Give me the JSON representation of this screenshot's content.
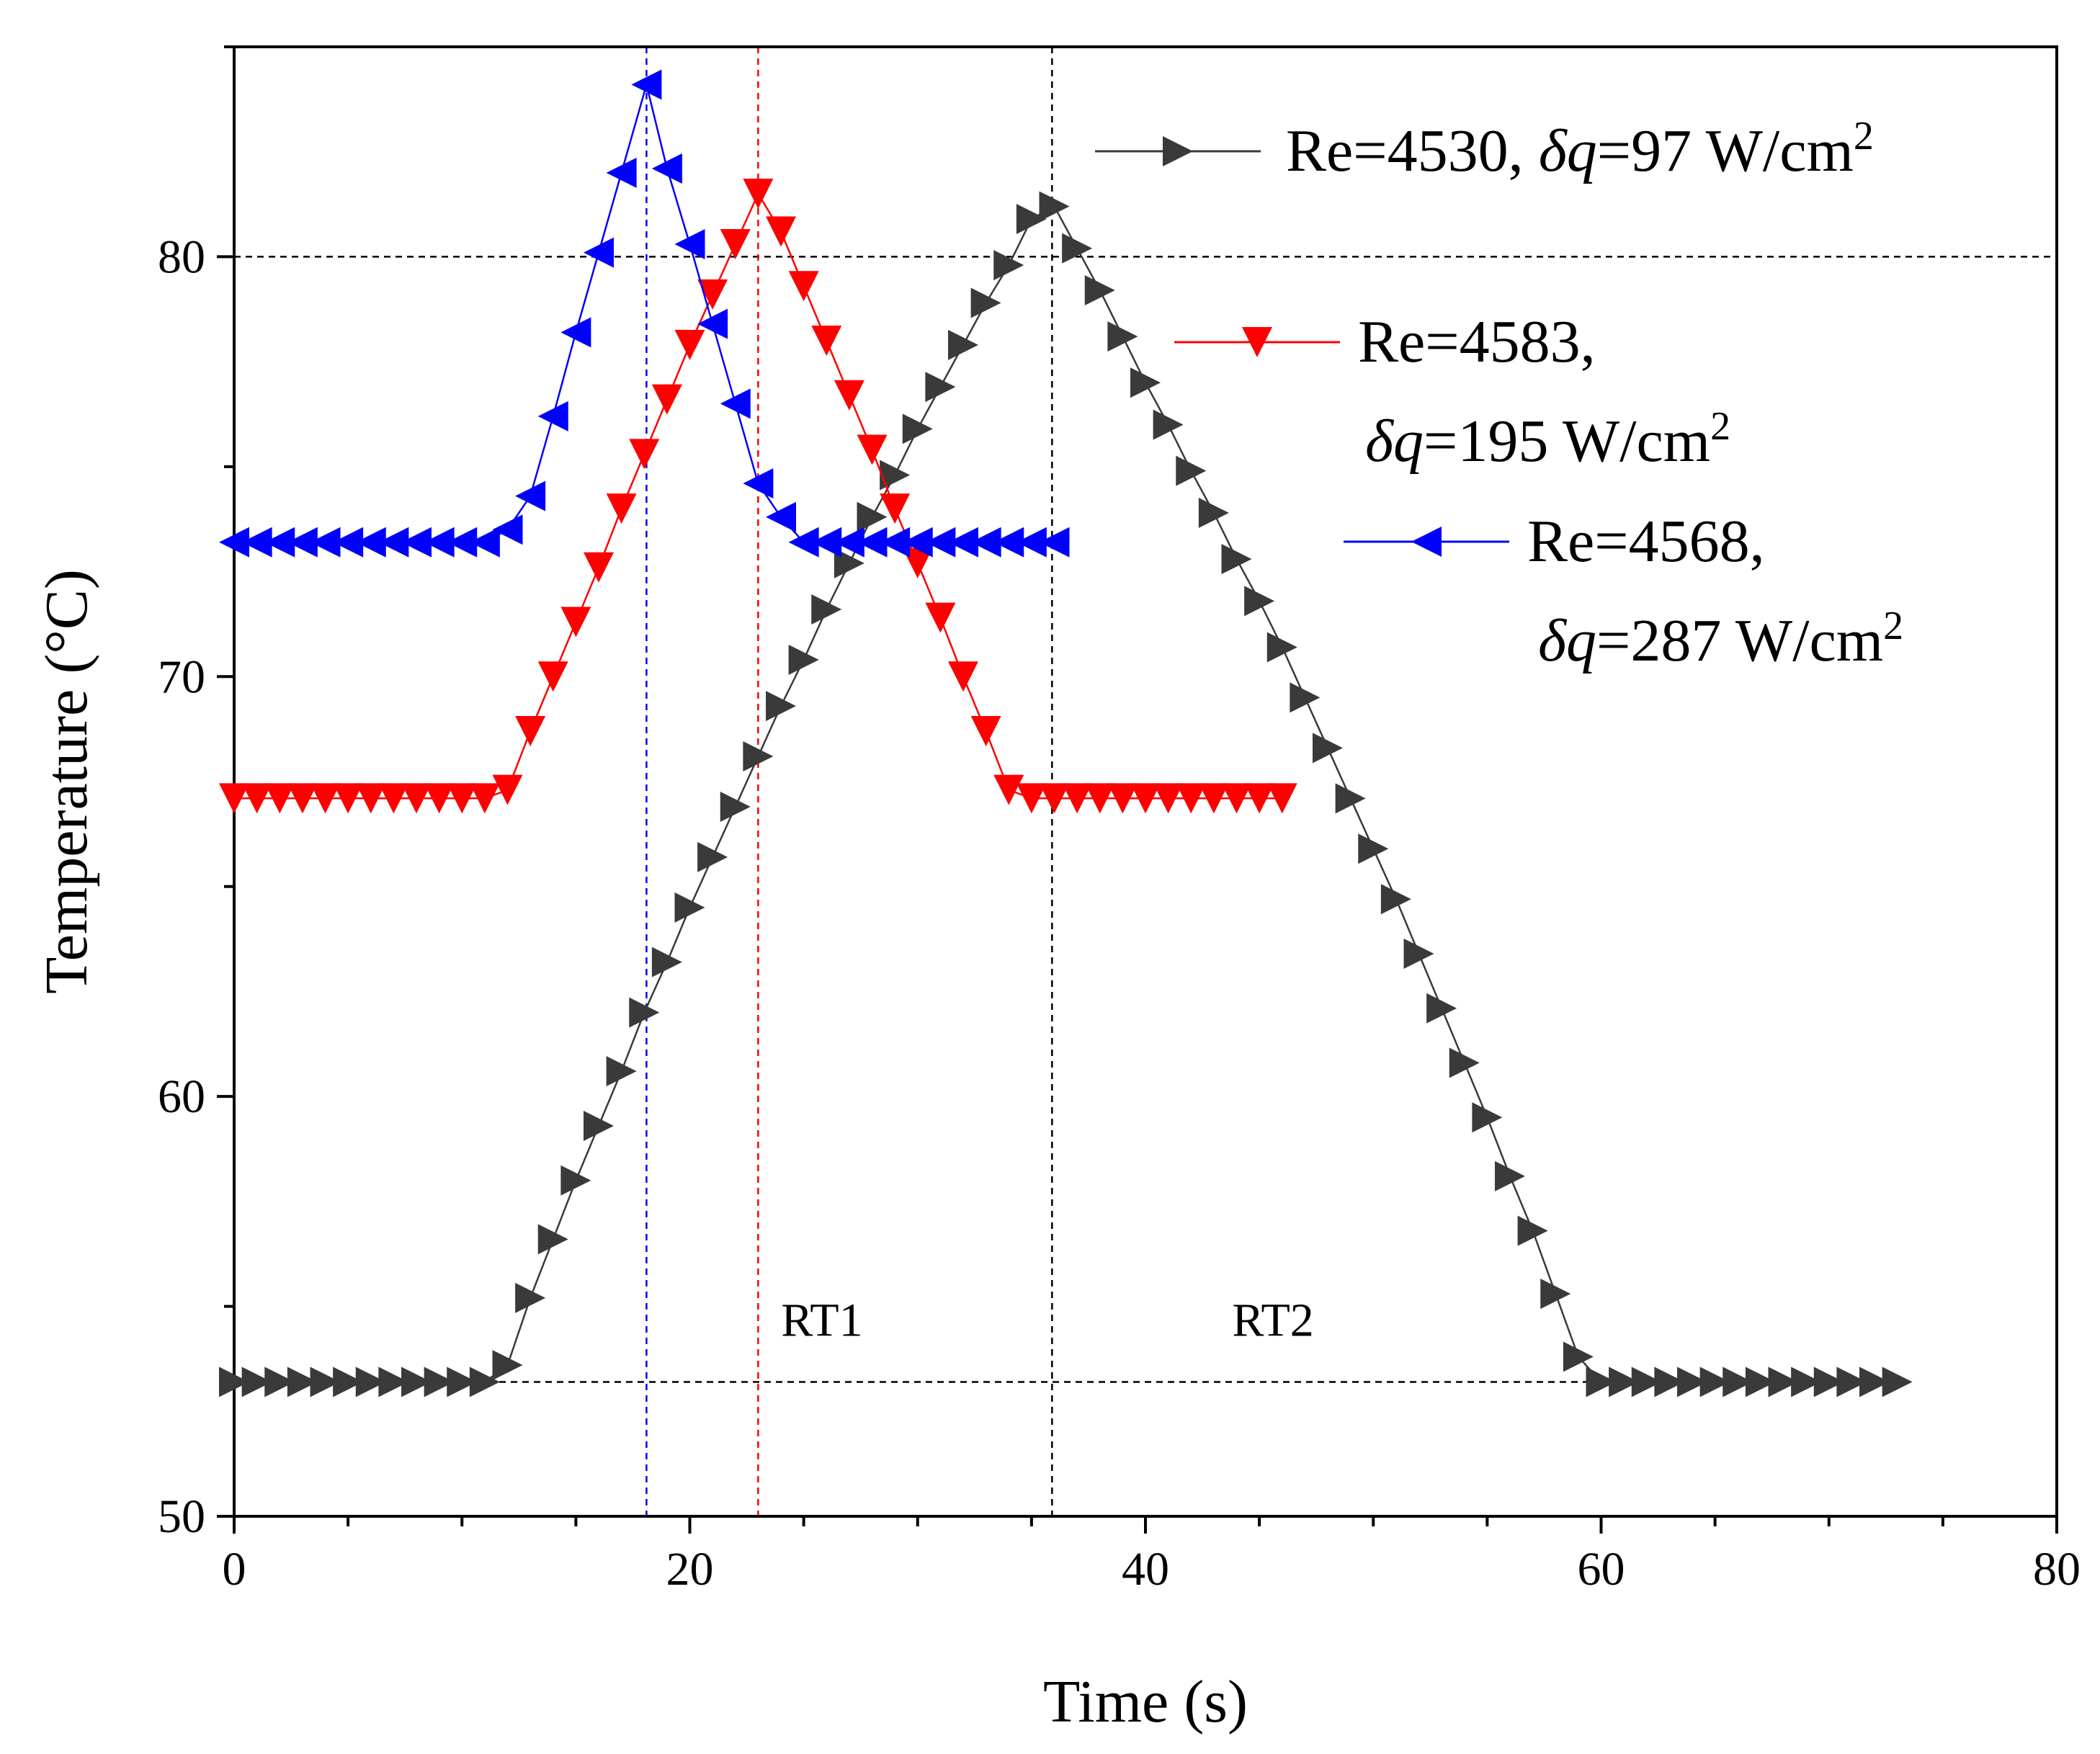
{
  "chart_data": {
    "type": "line",
    "xlabel": "Time (s)",
    "ylabel": "Temperature (°C)",
    "xlim": [
      0,
      80
    ],
    "ylim": [
      50,
      85
    ],
    "xticks": [
      "0",
      "20",
      "40",
      "60",
      "80"
    ],
    "yticks": [
      "50",
      "60",
      "70",
      "80"
    ],
    "reference_lines": [
      {
        "orientation": "horizontal",
        "y": 80,
        "color": "#000000"
      },
      {
        "orientation": "horizontal",
        "y": 53.2,
        "x_range": [
          0,
          60
        ],
        "color": "#000000"
      },
      {
        "orientation": "vertical",
        "x": 18.1,
        "color": "#0000ff"
      },
      {
        "orientation": "vertical",
        "x": 23,
        "color": "#ff0000"
      },
      {
        "orientation": "vertical",
        "x": 35.9,
        "color": "#000000"
      }
    ],
    "annotations": [
      {
        "text": "RT1",
        "x": 25.8,
        "y": 54.3
      },
      {
        "text": "RT2",
        "x": 45.6,
        "y": 54.3
      }
    ],
    "series": [
      {
        "name": "Re=4530, δq=97 W/cm2",
        "legend": {
          "pre": "Re=4530, ",
          "dq": "δq",
          "post": "=97 W/cm",
          "sup": "2"
        },
        "color": "#3a3a3a",
        "marker": "triangle-right",
        "x": [
          0.0,
          1.0,
          2.0,
          3.0,
          4.0,
          5.0,
          6.0,
          7.0,
          8.0,
          9.0,
          10.0,
          11.0,
          12.0,
          13.0,
          14.0,
          15.0,
          16.0,
          17.0,
          18.0,
          19.0,
          20.0,
          21.0,
          22.0,
          23.0,
          24.0,
          25.0,
          26.0,
          27.0,
          28.0,
          29.0,
          30.0,
          31.0,
          32.0,
          33.0,
          34.0,
          35.0,
          36.0,
          37.0,
          38.0,
          39.0,
          40.0,
          41.0,
          42.0,
          43.0,
          44.0,
          45.0,
          46.0,
          47.0,
          48.0,
          49.0,
          50.0,
          51.0,
          52.0,
          53.0,
          54.0,
          55.0,
          56.0,
          57.0,
          58.0,
          59.0,
          60.0,
          61.0,
          62.0,
          63.0,
          64.0,
          65.0,
          66.0,
          67.0,
          68.0,
          69.0,
          70.0,
          71.0,
          72.0,
          73.0
        ],
        "y": [
          53.2,
          53.2,
          53.2,
          53.2,
          53.2,
          53.2,
          53.2,
          53.2,
          53.2,
          53.2,
          53.2,
          53.2,
          53.6,
          55.2,
          56.6,
          58.0,
          59.3,
          60.6,
          62.0,
          63.2,
          64.5,
          65.7,
          66.9,
          68.1,
          69.3,
          70.4,
          71.6,
          72.7,
          73.8,
          74.8,
          75.9,
          76.9,
          77.9,
          78.9,
          79.8,
          80.9,
          81.2,
          80.2,
          79.2,
          78.1,
          77.0,
          76.0,
          74.9,
          73.9,
          72.8,
          71.8,
          70.7,
          69.5,
          68.3,
          67.1,
          65.9,
          64.7,
          63.4,
          62.1,
          60.8,
          59.5,
          58.1,
          56.8,
          55.3,
          53.8,
          53.2,
          53.2,
          53.2,
          53.2,
          53.2,
          53.2,
          53.2,
          53.2,
          53.2,
          53.2,
          53.2,
          53.2,
          53.2,
          53.2
        ]
      },
      {
        "name": "Re=4583, δq=195 W/cm2",
        "legend": {
          "pre": "Re=4583,",
          "dq": "δq",
          "post": "=195 W/cm",
          "sup": "2"
        },
        "color": "#ff0000",
        "marker": "triangle-down",
        "x": [
          0.0,
          1.0,
          2.0,
          3.0,
          4.0,
          5.0,
          6.0,
          7.0,
          8.0,
          9.0,
          10.0,
          11.0,
          12.0,
          13.0,
          14.0,
          15.0,
          16.0,
          17.0,
          18.0,
          19.0,
          20.0,
          21.0,
          22.0,
          23.0,
          24.0,
          25.0,
          26.0,
          27.0,
          28.0,
          29.0,
          30.0,
          31.0,
          32.0,
          33.0,
          34.0,
          35.0,
          36.0,
          37.0,
          38.0,
          39.0,
          40.0,
          41.0,
          42.0,
          43.0,
          44.0,
          45.0,
          46.0
        ],
        "y": [
          67.1,
          67.1,
          67.1,
          67.1,
          67.1,
          67.1,
          67.1,
          67.1,
          67.1,
          67.1,
          67.1,
          67.1,
          67.3,
          68.7,
          70.0,
          71.3,
          72.6,
          74.0,
          75.3,
          76.6,
          77.9,
          79.1,
          80.3,
          81.5,
          80.6,
          79.3,
          78.0,
          76.7,
          75.4,
          74.0,
          72.7,
          71.4,
          70.0,
          68.7,
          67.3,
          67.1,
          67.1,
          67.1,
          67.1,
          67.1,
          67.1,
          67.1,
          67.1,
          67.1,
          67.1,
          67.1,
          67.1
        ]
      },
      {
        "name": "Re=4568, δq=287 W/cm2",
        "legend": {
          "pre": "Re=4568,",
          "dq": "δq",
          "post": "=287 W/cm",
          "sup": "2"
        },
        "color": "#0000ff",
        "marker": "triangle-left",
        "x": [
          0.0,
          1.0,
          2.0,
          3.0,
          4.0,
          5.0,
          6.0,
          7.0,
          8.0,
          9.0,
          10.0,
          11.0,
          12.0,
          13.0,
          14.0,
          15.0,
          16.0,
          17.0,
          18.1,
          19.0,
          20.0,
          21.0,
          22.0,
          23.0,
          24.0,
          25.0,
          26.0,
          27.0,
          28.0,
          29.0,
          30.0,
          31.0,
          32.0,
          33.0,
          34.0,
          35.0,
          36.0
        ],
        "y": [
          73.2,
          73.2,
          73.2,
          73.2,
          73.2,
          73.2,
          73.2,
          73.2,
          73.2,
          73.2,
          73.2,
          73.2,
          73.5,
          74.3,
          76.2,
          78.2,
          80.1,
          82.0,
          84.1,
          82.1,
          80.3,
          78.4,
          76.5,
          74.6,
          73.8,
          73.2,
          73.2,
          73.2,
          73.2,
          73.2,
          73.2,
          73.2,
          73.2,
          73.2,
          73.2,
          73.2,
          73.2
        ]
      }
    ]
  }
}
